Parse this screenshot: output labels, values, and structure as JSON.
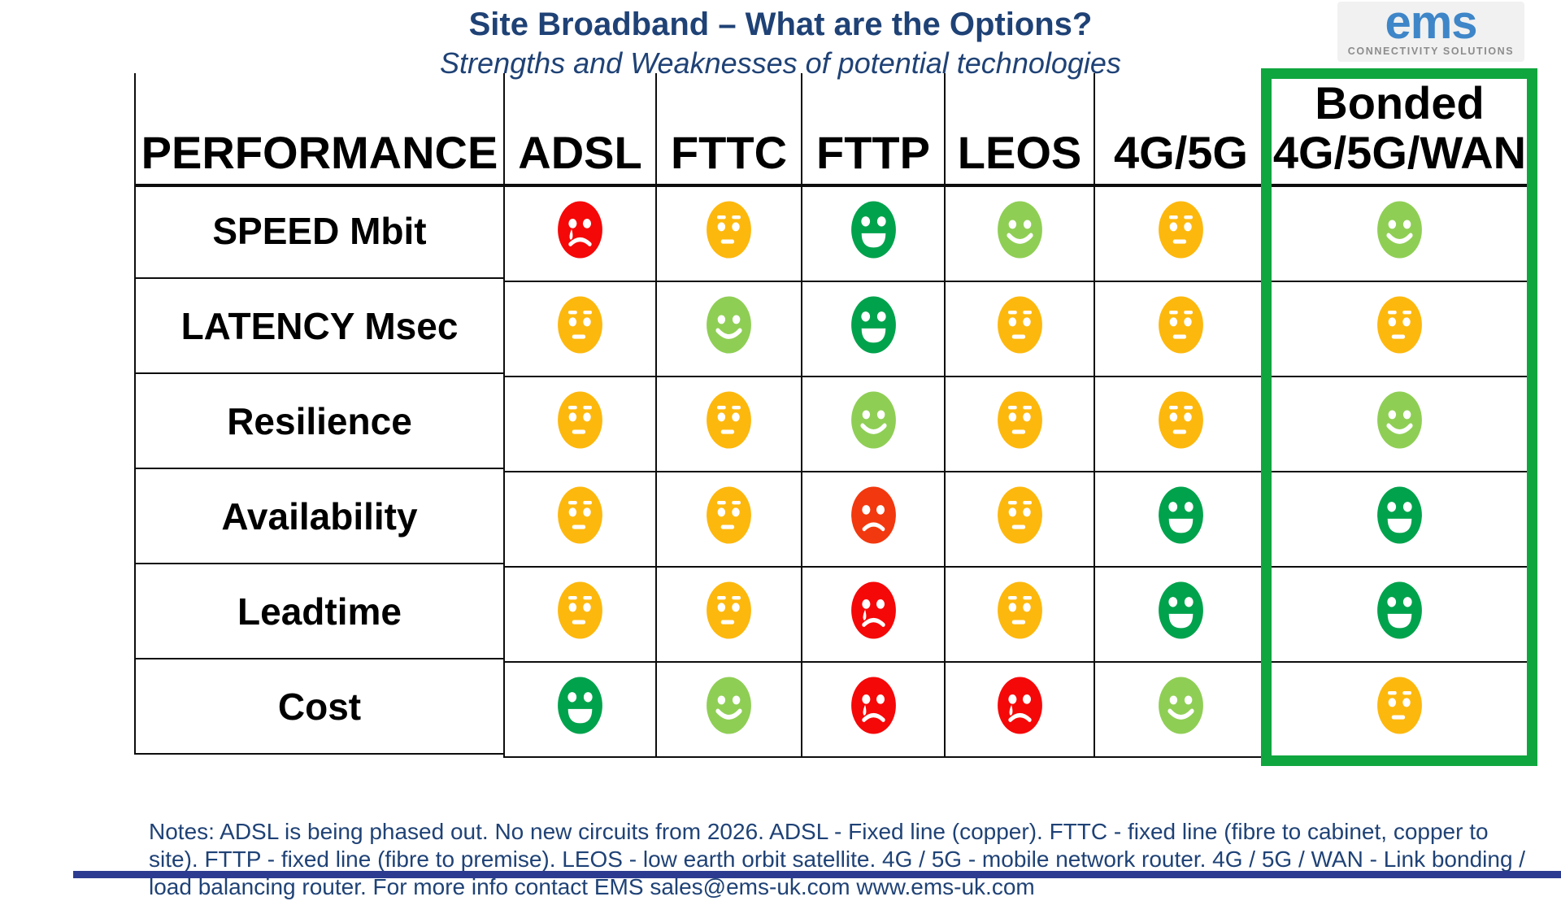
{
  "header": {
    "title": "Site Broadband – What are the Options?",
    "subtitle": "Strengths and Weaknesses of potential technologies",
    "logo": {
      "brand": "ems",
      "tagline": "CONNECTIVITY SOLUTIONS"
    }
  },
  "colors": {
    "title_navy": "#1F4276",
    "red": "#F50808",
    "orange_red": "#F2380E",
    "amber": "#FDB80E",
    "green": "#00A24C",
    "light_green": "#8FCE55",
    "highlight_green": "#10A63F",
    "logo_blue": "#3E86C8",
    "logo_gray": "#8C8C8C",
    "bottom_bar_blue": "#2C3A8F",
    "grid_line": "#0d0d0d"
  },
  "chart_data": {
    "type": "table",
    "title": "Site Broadband – What are the Options?",
    "subtitle": "Strengths and Weaknesses of potential technologies",
    "columns": [
      "PERFORMANCE",
      "ADSL",
      "FTTC",
      "FTTP",
      "LEOS",
      "4G/5G",
      "Bonded 4G/5G/WAN"
    ],
    "rating_scale": {
      "very-poor": "red crying face",
      "poor": "orange-red sad face",
      "average": "amber neutral face",
      "good": "light-green smiling face",
      "very-good": "dark-green grinning face"
    },
    "rows": [
      {
        "label": "SPEED Mbit",
        "ratings": [
          "very-poor",
          "average",
          "very-good",
          "good",
          "average",
          "good"
        ]
      },
      {
        "label": "LATENCY Msec",
        "ratings": [
          "average",
          "good",
          "very-good",
          "average",
          "average",
          "average"
        ]
      },
      {
        "label": "Resilience",
        "ratings": [
          "average",
          "average",
          "good",
          "average",
          "average",
          "good"
        ]
      },
      {
        "label": "Availability",
        "ratings": [
          "average",
          "average",
          "poor",
          "average",
          "very-good",
          "very-good"
        ]
      },
      {
        "label": "Leadtime",
        "ratings": [
          "average",
          "average",
          "very-poor",
          "average",
          "very-good",
          "very-good"
        ]
      },
      {
        "label": "Cost",
        "ratings": [
          "very-good",
          "good",
          "very-poor",
          "very-poor",
          "good",
          "average"
        ]
      }
    ],
    "highlighted_column": "Bonded 4G/5G/WAN"
  },
  "table": {
    "columns": [
      "PERFORMANCE",
      "ADSL",
      "FTTC",
      "FTTP",
      "LEOS",
      "4G/5G",
      "Bonded\n4G/5G/WAN"
    ],
    "rows": [
      {
        "label": "SPEED Mbit",
        "cells": [
          {
            "face": "crying",
            "color": "red"
          },
          {
            "face": "neutral",
            "color": "amber"
          },
          {
            "face": "grin",
            "color": "green"
          },
          {
            "face": "smile",
            "color": "light_green"
          },
          {
            "face": "neutral",
            "color": "amber"
          },
          {
            "face": "smile",
            "color": "light_green"
          }
        ]
      },
      {
        "label": "LATENCY Msec",
        "cells": [
          {
            "face": "neutral",
            "color": "amber"
          },
          {
            "face": "smile",
            "color": "light_green"
          },
          {
            "face": "grin",
            "color": "green"
          },
          {
            "face": "neutral",
            "color": "amber"
          },
          {
            "face": "neutral",
            "color": "amber"
          },
          {
            "face": "neutral",
            "color": "amber"
          }
        ]
      },
      {
        "label": "Resilience",
        "cells": [
          {
            "face": "neutral",
            "color": "amber"
          },
          {
            "face": "neutral",
            "color": "amber"
          },
          {
            "face": "smile",
            "color": "light_green"
          },
          {
            "face": "neutral",
            "color": "amber"
          },
          {
            "face": "neutral",
            "color": "amber"
          },
          {
            "face": "smile",
            "color": "light_green"
          }
        ]
      },
      {
        "label": "Availability",
        "cells": [
          {
            "face": "neutral",
            "color": "amber"
          },
          {
            "face": "neutral",
            "color": "amber"
          },
          {
            "face": "sad",
            "color": "orange_red"
          },
          {
            "face": "neutral",
            "color": "amber"
          },
          {
            "face": "grin",
            "color": "green"
          },
          {
            "face": "grin",
            "color": "green"
          }
        ]
      },
      {
        "label": "Leadtime",
        "cells": [
          {
            "face": "neutral",
            "color": "amber"
          },
          {
            "face": "neutral",
            "color": "amber"
          },
          {
            "face": "crying",
            "color": "red"
          },
          {
            "face": "neutral",
            "color": "amber"
          },
          {
            "face": "grin",
            "color": "green"
          },
          {
            "face": "grin",
            "color": "green"
          }
        ]
      },
      {
        "label": "Cost",
        "cells": [
          {
            "face": "grin",
            "color": "green"
          },
          {
            "face": "smile",
            "color": "light_green"
          },
          {
            "face": "crying",
            "color": "red"
          },
          {
            "face": "crying",
            "color": "red"
          },
          {
            "face": "smile",
            "color": "light_green"
          },
          {
            "face": "neutral",
            "color": "amber"
          }
        ]
      }
    ]
  },
  "notes": {
    "text": "Notes: ADSL is being phased out. No new circuits from 2026. ADSL - Fixed line (copper). FTTC - fixed line (fibre to cabinet, copper to site). FTTP - fixed line (fibre to premise). LEOS - low earth orbit satellite. 4G / 5G - mobile network router. 4G / 5G / WAN - Link bonding / load balancing router. For more info contact EMS sales@ems-uk.com www.ems-uk.com"
  }
}
